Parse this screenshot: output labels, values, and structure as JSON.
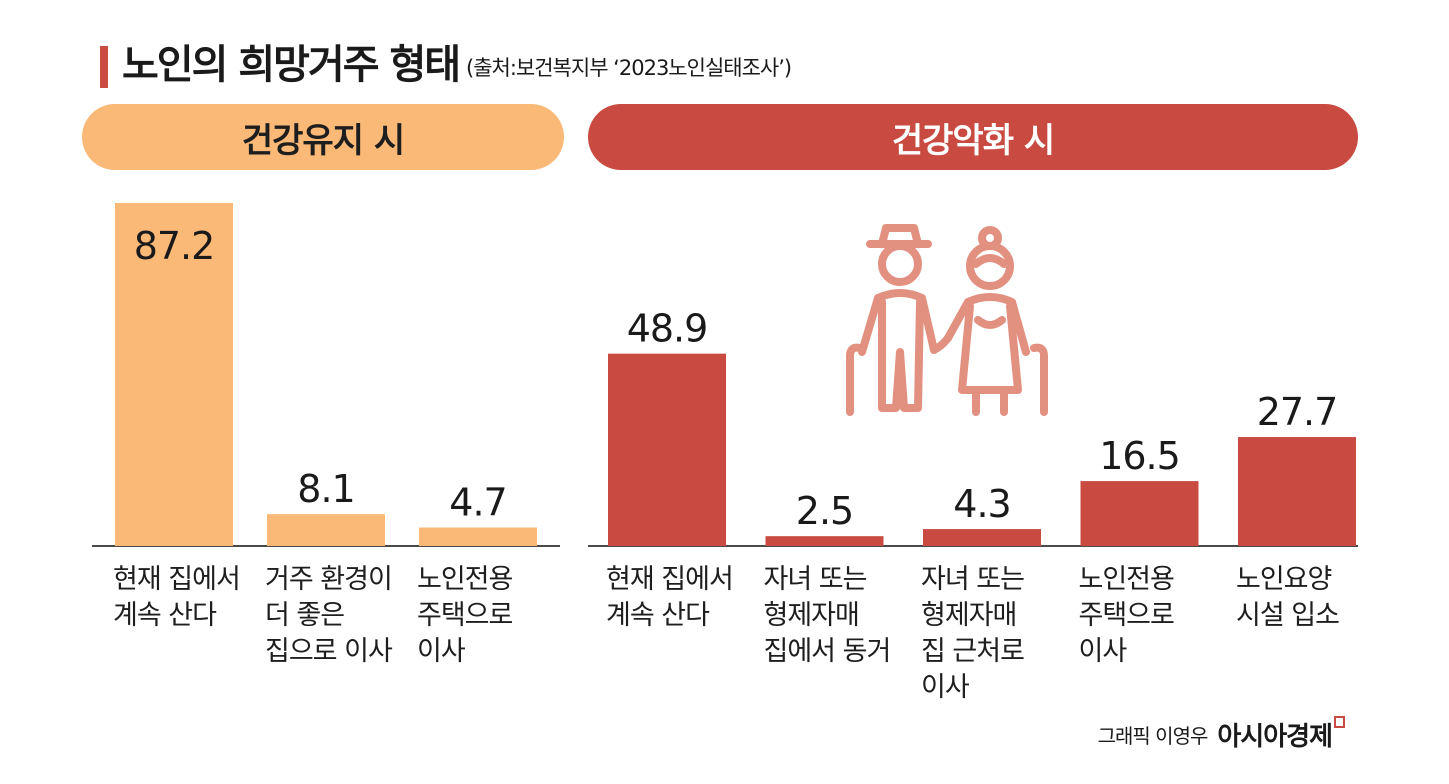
{
  "title": "노인의 희망거주 형태",
  "source": "(출처:보건복지부 ‘2023노인실태조사’)",
  "groups": {
    "left": "건강유지 시",
    "right": "건강악화 시"
  },
  "colors": {
    "healthy": "#fbb978",
    "worse": "#c94a40",
    "illustration": "#e2907f"
  },
  "icons": {
    "illustration": "elderly-couple-icon"
  },
  "credit": {
    "artist": "그래픽 이영우",
    "brand": "아시아경제"
  },
  "chart_data": [
    {
      "type": "bar",
      "categories": [
        "현재 집에서\n계속 산다",
        "거주 환경이\n더 좋은\n집으로 이사",
        "노인전용\n주택으로\n이사"
      ],
      "values": [
        87.2,
        8.1,
        4.7
      ],
      "title": "건강유지 시",
      "ylim": [
        0,
        87.2
      ]
    },
    {
      "type": "bar",
      "categories": [
        "현재 집에서\n계속 산다",
        "자녀 또는\n형제자매\n집에서 동거",
        "자녀 또는\n형제자매\n집 근처로\n이사",
        "노인전용\n주택으로\n이사",
        "노인요양\n시설 입소"
      ],
      "values": [
        48.9,
        2.5,
        4.3,
        16.5,
        27.7
      ],
      "title": "건강악화 시",
      "ylim": [
        0,
        87.2
      ]
    }
  ]
}
